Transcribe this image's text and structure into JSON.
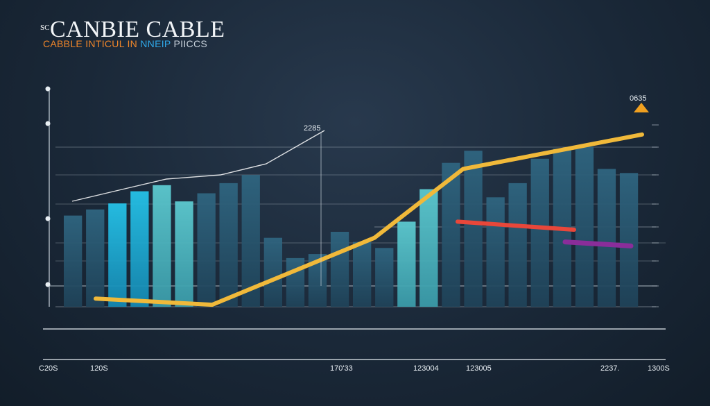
{
  "header": {
    "title_prefix": "SC",
    "title": "CANBIE CABLE",
    "subtitle_part1": "CABBLE INTICUL IN",
    "subtitle_part2": "NNEIP",
    "subtitle_part3": "PIICCS"
  },
  "chart_data": {
    "type": "bar",
    "title": "CANBIE CABLE",
    "subtitle": "CABBLE INTICUL IN NNEIP PIICCS",
    "x_tick_labels": [
      "C20S",
      "120S",
      "170'33",
      "123004",
      "123005",
      "2237.",
      "1300S"
    ],
    "annotations": [
      "2285",
      "0635"
    ],
    "values": [
      45,
      48,
      51,
      57,
      60,
      52,
      56,
      61,
      65,
      34,
      24,
      26,
      37,
      32,
      29,
      42,
      58,
      71,
      77,
      54,
      61,
      73,
      78,
      79,
      68,
      66
    ],
    "lines": [
      {
        "color": "#f0b93a",
        "values": [
          4,
          1,
          34,
          68,
          85
        ]
      },
      {
        "color": "#e8473a",
        "values": [
          42,
          38
        ]
      },
      {
        "color": "#8a2d9a",
        "values": [
          32,
          30
        ]
      }
    ],
    "ylim": [
      0,
      100
    ],
    "grid": true,
    "legend": "none"
  },
  "colors": {
    "background": "#1a2838",
    "bar_dark": "#2b5a73",
    "bar_cyan": "#1fb0d8",
    "bar_teal": "#4fbfc8",
    "line_main": "#f0b93a",
    "line_red": "#e8473a",
    "line_purple": "#8a2d9a",
    "marker": "#f0a020"
  }
}
